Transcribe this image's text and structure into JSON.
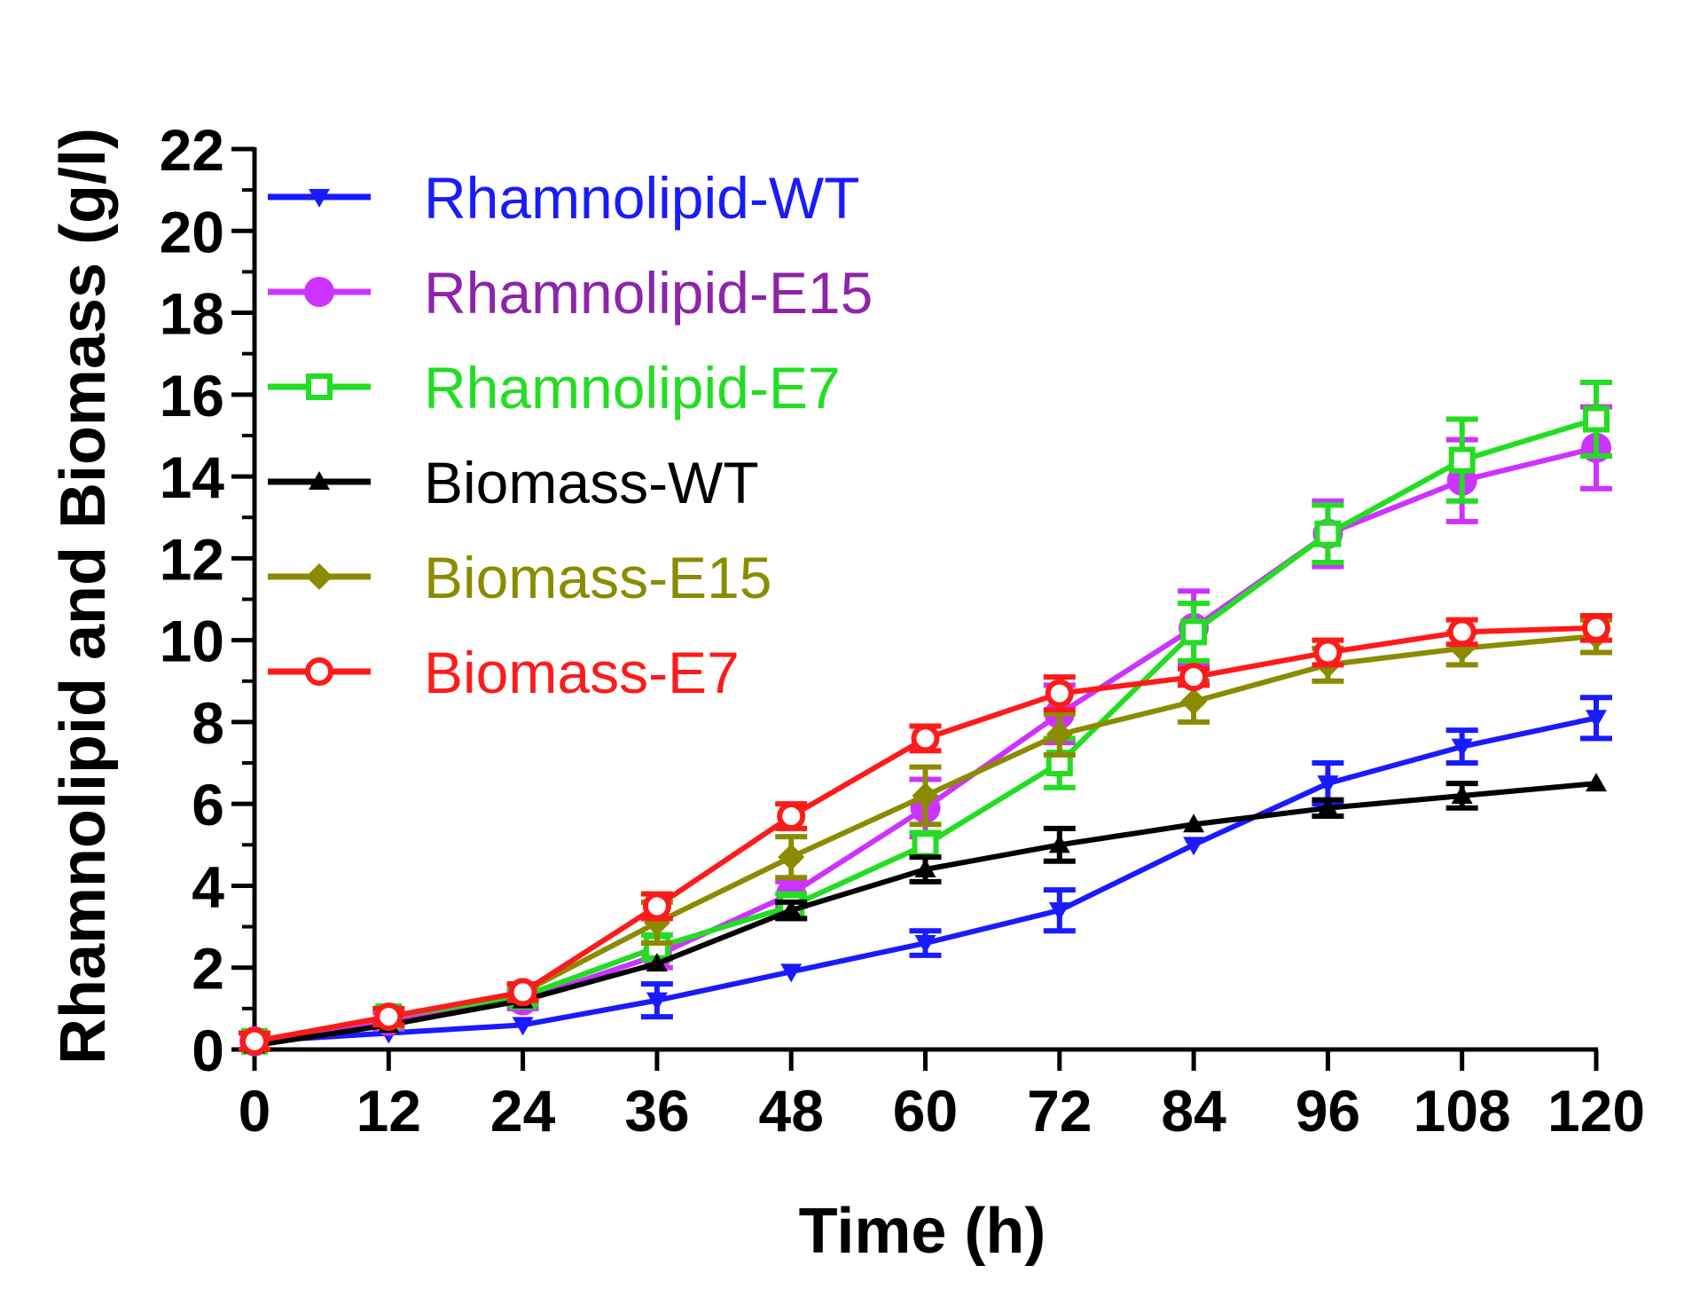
{
  "chart_data": {
    "type": "line",
    "title": "",
    "xlabel": "Time (h)",
    "ylabel": "Rhamnolipid and Biomass (g/l)",
    "x": [
      0,
      12,
      24,
      36,
      48,
      60,
      72,
      84,
      96,
      108,
      120
    ],
    "xticks": [
      "0",
      "12",
      "24",
      "36",
      "48",
      "60",
      "72",
      "84",
      "96",
      "108",
      "120"
    ],
    "yticks": [
      "0",
      "2",
      "4",
      "6",
      "8",
      "10",
      "12",
      "14",
      "16",
      "18",
      "20",
      "22"
    ],
    "xlim": [
      0,
      120
    ],
    "ylim": [
      0,
      22
    ],
    "legend_position": "top-left",
    "series": [
      {
        "name": "Rhamnolipid-WT",
        "color": "#1a1aff",
        "marker": "triangle-down",
        "values": [
          0.2,
          0.4,
          0.6,
          1.2,
          1.9,
          2.6,
          3.4,
          5.0,
          6.5,
          7.4,
          8.1
        ],
        "errors": [
          0.1,
          0.1,
          0.1,
          0.4,
          0.1,
          0.3,
          0.5,
          0.1,
          0.5,
          0.4,
          0.5
        ]
      },
      {
        "name": "Rhamnolipid-E15",
        "color": "#cc33ff",
        "text_color": "#8e24aa",
        "marker": "circle",
        "values": [
          0.2,
          0.7,
          1.2,
          2.3,
          3.8,
          5.9,
          8.2,
          10.3,
          12.6,
          13.9,
          14.7
        ],
        "errors": [
          0.2,
          0.2,
          0.2,
          0.3,
          0.3,
          0.7,
          0.7,
          0.9,
          0.8,
          1.0,
          1.0
        ]
      },
      {
        "name": "Rhamnolipid-E7",
        "color": "#22dd22",
        "marker": "square-open",
        "values": [
          0.2,
          0.8,
          1.3,
          2.5,
          3.5,
          5.0,
          7.0,
          10.2,
          12.6,
          14.4,
          15.4
        ],
        "errors": [
          0.2,
          0.2,
          0.2,
          0.3,
          0.3,
          0.3,
          0.6,
          0.7,
          0.7,
          1.0,
          0.9
        ]
      },
      {
        "name": "Biomass-WT",
        "color": "#000000",
        "marker": "triangle-up",
        "values": [
          0.1,
          0.6,
          1.2,
          2.1,
          3.4,
          4.4,
          5.0,
          5.5,
          5.9,
          6.2,
          6.5
        ],
        "errors": [
          0.1,
          0.1,
          0.1,
          0.1,
          0.2,
          0.3,
          0.4,
          0.1,
          0.2,
          0.3,
          0.1
        ]
      },
      {
        "name": "Biomass-E15",
        "color": "#8b8b00",
        "marker": "diamond",
        "values": [
          0.2,
          0.8,
          1.4,
          3.1,
          4.7,
          6.2,
          7.7,
          8.5,
          9.4,
          9.8,
          10.1
        ],
        "errors": [
          0.2,
          0.1,
          0.2,
          0.5,
          0.5,
          0.7,
          0.5,
          0.5,
          0.4,
          0.4,
          0.4
        ]
      },
      {
        "name": "Biomass-E7",
        "color": "#ff1a1a",
        "marker": "circle-open",
        "values": [
          0.2,
          0.8,
          1.4,
          3.5,
          5.7,
          7.6,
          8.7,
          9.1,
          9.7,
          10.2,
          10.3
        ],
        "errors": [
          0.2,
          0.2,
          0.2,
          0.3,
          0.3,
          0.3,
          0.4,
          0.2,
          0.3,
          0.3,
          0.3
        ]
      }
    ]
  }
}
